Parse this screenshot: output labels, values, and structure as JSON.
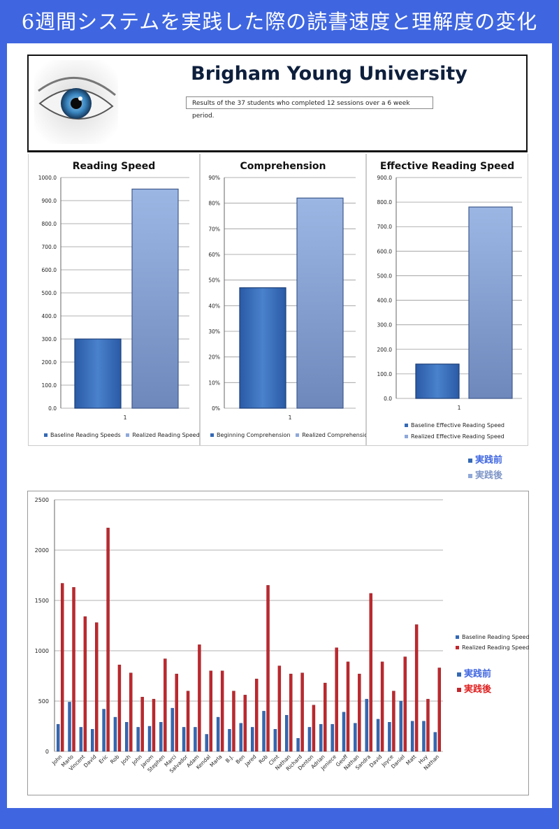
{
  "title": "6週間システムを実践した際の読書速度と理解度の変化",
  "header": {
    "university": "Brigham Young University",
    "results_text": "Results of the 37 students who completed  12 sessions over  a 6 week period."
  },
  "colors": {
    "baseline": "#3468b4",
    "realized": "#8ea8d8",
    "red": "#c0272d",
    "page_bg": "#3f66e0"
  },
  "legend_jp": {
    "before": "実践前",
    "after": "実践後"
  },
  "chart_data": [
    {
      "type": "bar",
      "title": "Reading Speed",
      "categories": [
        "1"
      ],
      "series": [
        {
          "name": "Baseline Reading Speeds",
          "values": [
            300
          ]
        },
        {
          "name": "Realized Reading Speed*",
          "values": [
            950
          ]
        }
      ],
      "ylim": [
        0,
        1000
      ],
      "yticks": [
        "0.0",
        "100.0",
        "200.0",
        "300.0",
        "400.0",
        "500.0",
        "600.0",
        "700.0",
        "800.0",
        "900.0",
        "1000.0"
      ],
      "grid": true,
      "legend": "bottom"
    },
    {
      "type": "bar",
      "title": "Comprehension",
      "categories": [
        "1"
      ],
      "series": [
        {
          "name": "Beginning Comprehension",
          "values": [
            47
          ]
        },
        {
          "name": "Realized Comprehension*",
          "values": [
            82
          ]
        }
      ],
      "ylim": [
        0,
        90
      ],
      "yticks": [
        "0%",
        "10%",
        "20%",
        "30%",
        "40%",
        "50%",
        "60%",
        "70%",
        "80%",
        "90%"
      ],
      "grid": true,
      "legend": "bottom"
    },
    {
      "type": "bar",
      "title": "Effective Reading Speed",
      "categories": [
        "1"
      ],
      "series": [
        {
          "name": "Baseline Effective Reading Speed",
          "values": [
            140
          ]
        },
        {
          "name": "Realized Effective Reading Speed",
          "values": [
            780
          ]
        }
      ],
      "ylim": [
        0,
        900
      ],
      "yticks": [
        "0.0",
        "100.0",
        "200.0",
        "300.0",
        "400.0",
        "500.0",
        "600.0",
        "700.0",
        "800.0",
        "900.0"
      ],
      "grid": true,
      "legend": "bottom"
    },
    {
      "type": "bar",
      "categories": [
        "John",
        "Marlo",
        "Vincent",
        "David",
        "Eric",
        "Rob",
        "Josh",
        "John",
        "Jarom",
        "Stephen",
        "Marci",
        "Salvador",
        "Adam",
        "Kendal",
        "Marla",
        "B.J.",
        "Ben",
        "Jared",
        "Rob",
        "Clint",
        "Nathan",
        "Richard",
        "Denton",
        "Adrian",
        "Jeniece",
        "Geoff",
        "Nathan",
        "Sandra",
        "David",
        "Joyce",
        "Daniel",
        "Matt",
        "Huy",
        "Nathan"
      ],
      "series": [
        {
          "name": "Baseline Reading Speed",
          "values": [
            270,
            490,
            240,
            220,
            420,
            340,
            290,
            240,
            250,
            290,
            430,
            240,
            240,
            170,
            340,
            220,
            280,
            240,
            400,
            220,
            360,
            130,
            240,
            270,
            270,
            390,
            280,
            520,
            320,
            290,
            500,
            300,
            300,
            190
          ]
        },
        {
          "name": "Realized Reading Speed",
          "values": [
            1670,
            1630,
            1340,
            1280,
            2220,
            860,
            780,
            540,
            520,
            920,
            770,
            600,
            1060,
            800,
            800,
            600,
            560,
            720,
            1650,
            850,
            770,
            780,
            460,
            680,
            1030,
            890,
            770,
            1570,
            890,
            600,
            940,
            1260,
            520,
            830
          ]
        }
      ],
      "ylim": [
        0,
        2500
      ],
      "yticks": [
        "0",
        "500",
        "1000",
        "1500",
        "2000",
        "2500"
      ],
      "grid": true,
      "legend": "right"
    }
  ]
}
